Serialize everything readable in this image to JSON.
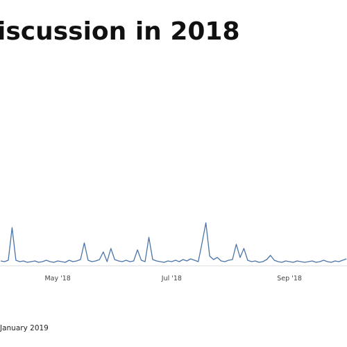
{
  "chart_data": {
    "type": "line",
    "title": "iscussion in 2018",
    "footer": "January 2019",
    "color": "#4a74a8",
    "ylim": [
      0,
      100
    ],
    "categories": [
      null,
      null,
      null,
      null,
      null,
      null,
      null,
      null,
      null,
      null,
      null,
      null,
      null,
      null,
      null,
      "May '18",
      null,
      null,
      null,
      null,
      null,
      null,
      null,
      null,
      null,
      null,
      null,
      null,
      null,
      null,
      null,
      null,
      null,
      null,
      null,
      null,
      null,
      null,
      null,
      null,
      null,
      null,
      null,
      null,
      null,
      "Jul '18",
      null,
      null,
      null,
      null,
      null,
      null,
      null,
      null,
      null,
      null,
      null,
      null,
      null,
      null,
      null,
      null,
      null,
      null,
      null,
      null,
      null,
      null,
      null,
      null,
      null,
      null,
      null,
      null,
      null,
      null,
      "Sep '18",
      null,
      null,
      null,
      null,
      null,
      null,
      null,
      null,
      null,
      null,
      null,
      null,
      null,
      null,
      null
    ],
    "values": [
      7,
      6,
      8,
      55,
      8,
      6,
      7,
      5,
      6,
      7,
      5,
      6,
      8,
      6,
      5,
      7,
      6,
      5,
      8,
      6,
      7,
      9,
      33,
      8,
      6,
      7,
      9,
      20,
      6,
      25,
      9,
      7,
      6,
      8,
      6,
      7,
      23,
      8,
      6,
      41,
      9,
      7,
      6,
      5,
      7,
      6,
      8,
      6,
      9,
      7,
      10,
      8,
      6,
      33,
      62,
      14,
      9,
      12,
      7,
      6,
      8,
      9,
      31,
      12,
      25,
      8,
      6,
      7,
      5,
      6,
      9,
      15,
      8,
      6,
      5,
      7,
      6,
      5,
      7,
      6,
      5,
      6,
      7,
      5,
      6,
      8,
      6,
      5,
      7,
      6,
      8,
      10
    ]
  }
}
